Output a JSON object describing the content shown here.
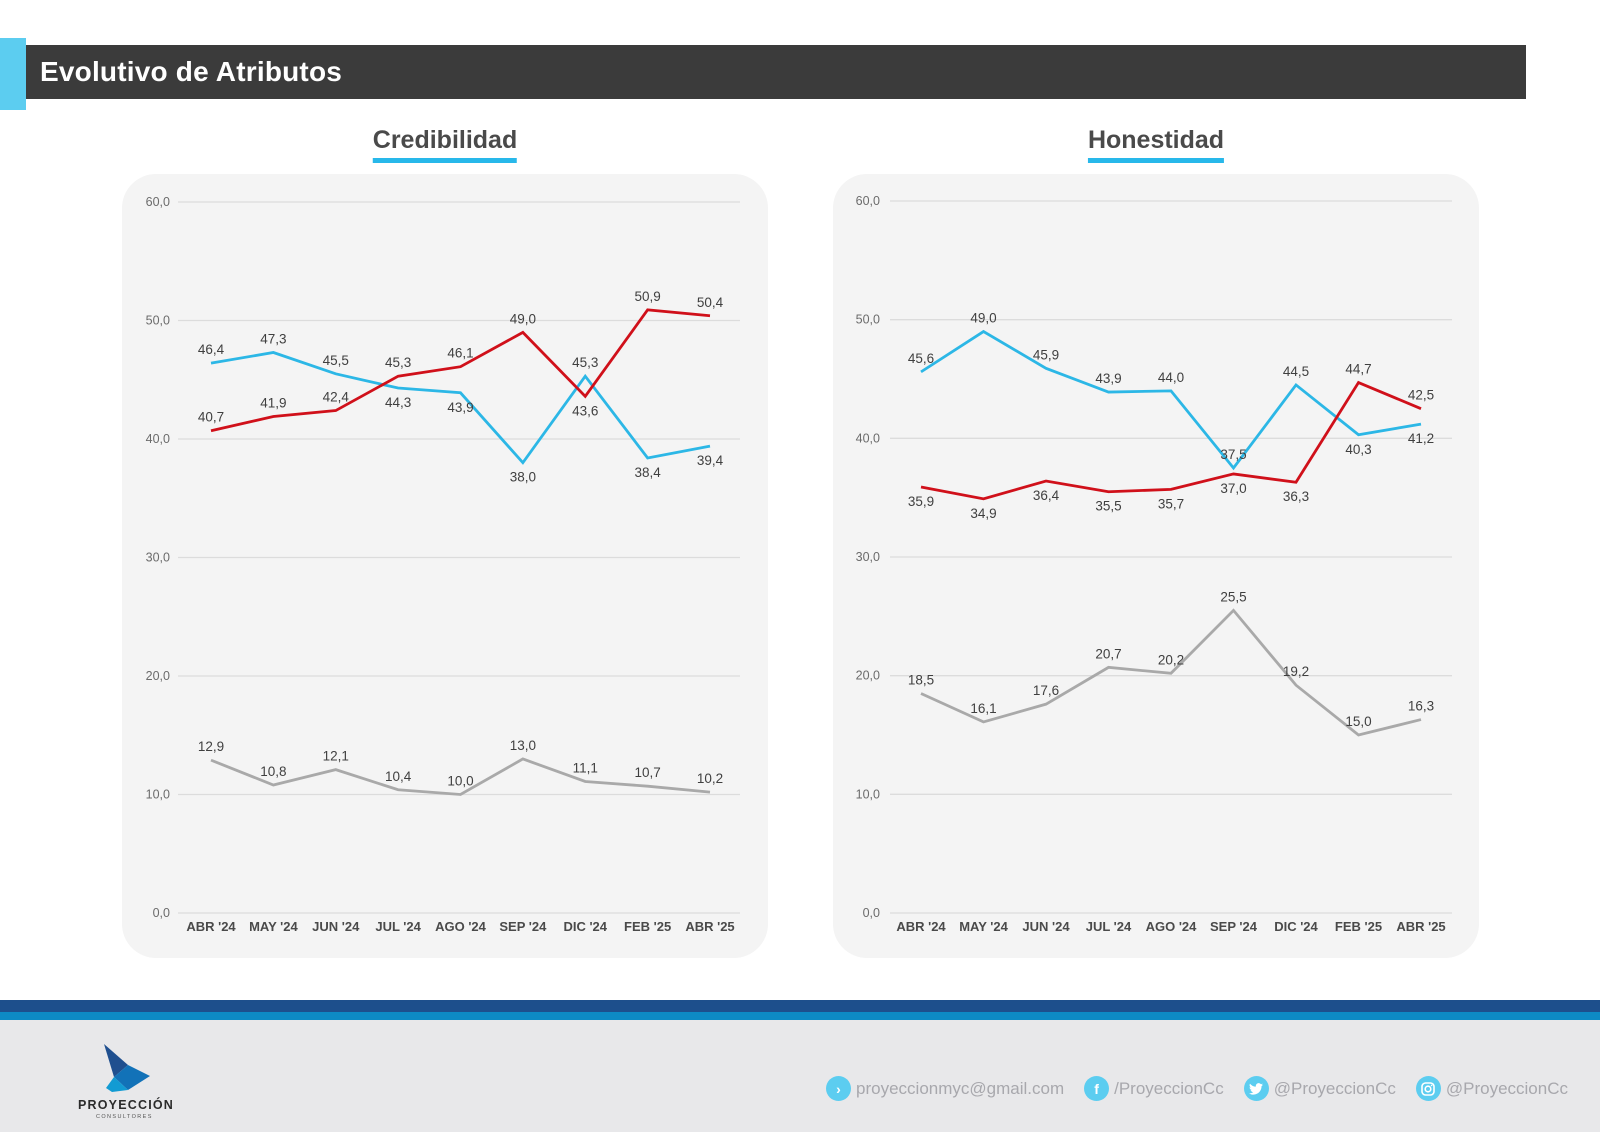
{
  "header": {
    "title": "Evolutivo de Atributos"
  },
  "colors": {
    "accent": "#28b8ea",
    "red_series": "#d0101a",
    "gray_series": "#a9a9a9",
    "header_bg": "#3b3b3b"
  },
  "chart_data": [
    {
      "type": "line",
      "title": "Credibilidad",
      "xlabel": "",
      "ylabel": "",
      "categories": [
        "ABR '24",
        "MAY '24",
        "JUN '24",
        "JUL '24",
        "AGO '24",
        "SEP '24",
        "DIC '24",
        "FEB '25",
        "ABR '25"
      ],
      "ylim": [
        0,
        60
      ],
      "yticks": [
        "0,0",
        "10,0",
        "20,0",
        "30,0",
        "40,0",
        "50,0",
        "60,0"
      ],
      "grid": true,
      "legend": "none",
      "series": [
        {
          "name": "blue",
          "color": "#2cb7e6",
          "values": [
            46.4,
            47.3,
            45.5,
            44.3,
            43.9,
            38.0,
            45.3,
            38.4,
            39.4
          ],
          "labels": [
            "46,4",
            "47,3",
            "45,5",
            "44,3",
            "43,9",
            "38,0",
            "45,3",
            "38,4",
            "39,4"
          ],
          "label_pos": [
            "above",
            "above",
            "above",
            "below",
            "below",
            "below",
            "above",
            "below",
            "below"
          ]
        },
        {
          "name": "red",
          "color": "#d0101a",
          "values": [
            40.7,
            41.9,
            42.4,
            45.3,
            46.1,
            49.0,
            43.6,
            50.9,
            50.4
          ],
          "labels": [
            "40,7",
            "41,9",
            "42,4",
            "45,3",
            "46,1",
            "49,0",
            "43,6",
            "50,9",
            "50,4"
          ],
          "label_pos": [
            "above",
            "above",
            "above",
            "above",
            "above",
            "above",
            "below",
            "above",
            "above"
          ]
        },
        {
          "name": "gray",
          "color": "#a9a9a9",
          "values": [
            12.9,
            10.8,
            12.1,
            10.4,
            10.0,
            13.0,
            11.1,
            10.7,
            10.2
          ],
          "labels": [
            "12,9",
            "10,8",
            "12,1",
            "10,4",
            "10,0",
            "13,0",
            "11,1",
            "10,7",
            "10,2"
          ],
          "label_pos": [
            "above",
            "above",
            "above",
            "above",
            "above",
            "above",
            "above",
            "above",
            "above"
          ]
        }
      ]
    },
    {
      "type": "line",
      "title": "Honestidad",
      "xlabel": "",
      "ylabel": "",
      "categories": [
        "ABR '24",
        "MAY '24",
        "JUN '24",
        "JUL '24",
        "AGO '24",
        "SEP '24",
        "DIC '24",
        "FEB '25",
        "ABR '25"
      ],
      "ylim": [
        0,
        60
      ],
      "yticks": [
        "0,0",
        "10,0",
        "20,0",
        "30,0",
        "40,0",
        "50,0",
        "60,0"
      ],
      "grid": true,
      "legend": "none",
      "series": [
        {
          "name": "blue",
          "color": "#2cb7e6",
          "values": [
            45.6,
            49.0,
            45.9,
            43.9,
            44.0,
            37.5,
            44.5,
            40.3,
            41.2
          ],
          "labels": [
            "45,6",
            "49,0",
            "45,9",
            "43,9",
            "44,0",
            "37,5",
            "44,5",
            "40,3",
            "41,2"
          ],
          "label_pos": [
            "above",
            "above",
            "above",
            "above",
            "above",
            "above",
            "above",
            "below",
            "below"
          ]
        },
        {
          "name": "red",
          "color": "#d0101a",
          "values": [
            35.9,
            34.9,
            36.4,
            35.5,
            35.7,
            37.0,
            36.3,
            44.7,
            42.5
          ],
          "labels": [
            "35,9",
            "34,9",
            "36,4",
            "35,5",
            "35,7",
            "37,0",
            "36,3",
            "44,7",
            "42,5"
          ],
          "label_pos": [
            "below",
            "below",
            "below",
            "below",
            "below",
            "below",
            "below",
            "above",
            "above"
          ]
        },
        {
          "name": "gray",
          "color": "#a9a9a9",
          "values": [
            18.5,
            16.1,
            17.6,
            20.7,
            20.2,
            25.5,
            19.2,
            15.0,
            16.3
          ],
          "labels": [
            "18,5",
            "16,1",
            "17,6",
            "20,7",
            "20,2",
            "25,5",
            "19,2",
            "15,0",
            "16,3"
          ],
          "label_pos": [
            "above",
            "above",
            "above",
            "above",
            "above",
            "above",
            "above",
            "above",
            "above"
          ]
        }
      ]
    }
  ],
  "footer": {
    "brand": "PROYECCIÓN",
    "brand_sub": "CONSULTORES",
    "contacts": [
      {
        "icon": "arrow-right-circle-icon",
        "glyph": "›",
        "text": "proyeccionmyc@gmail.com"
      },
      {
        "icon": "facebook-icon",
        "glyph": "f",
        "text": "/ProyeccionCc"
      },
      {
        "icon": "twitter-icon",
        "glyph": "🐦",
        "text": "@ProyeccionCc"
      },
      {
        "icon": "instagram-icon",
        "glyph": "◎",
        "text": "@ProyeccionCc"
      }
    ]
  }
}
